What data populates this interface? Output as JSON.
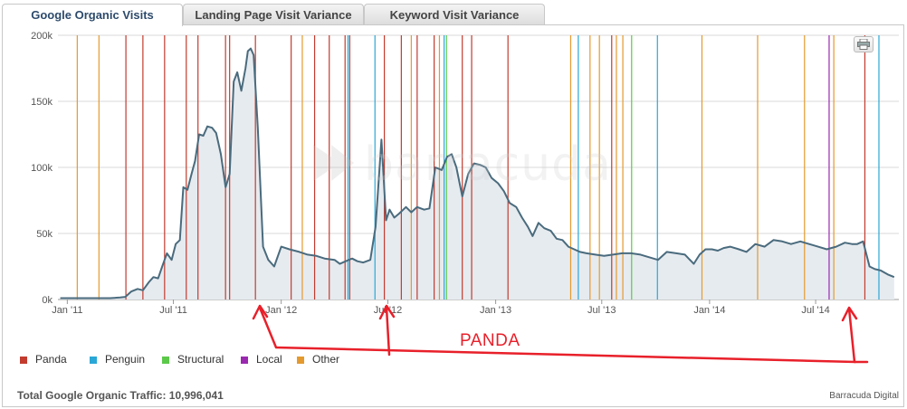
{
  "tabs": [
    {
      "label": "Google Organic Visits",
      "active": true
    },
    {
      "label": "Landing Page Visit Variance",
      "active": false
    },
    {
      "label": "Keyword Visit Variance",
      "active": false
    }
  ],
  "watermark": {
    "text": "barracuda"
  },
  "annotation": {
    "text": "PANDA",
    "color": "#e8202a"
  },
  "legend": [
    {
      "label": "Panda",
      "color": "#c23b2e"
    },
    {
      "label": "Penguin",
      "color": "#2aa7d6"
    },
    {
      "label": "Structural",
      "color": "#5cc84a"
    },
    {
      "label": "Local",
      "color": "#9b29b0"
    },
    {
      "label": "Other",
      "color": "#e49a2e"
    }
  ],
  "footer": {
    "total_label": "Total Google Organic Traffic: 10,996,041",
    "credit": "Barracuda Digital"
  },
  "print_button": {
    "icon": "printer-icon"
  },
  "chart_data": {
    "type": "area",
    "title": "",
    "xlabel": "",
    "ylabel": "",
    "ylim": [
      0,
      200000
    ],
    "yticks": [
      {
        "value": 0,
        "label": "0k"
      },
      {
        "value": 50000,
        "label": "50k"
      },
      {
        "value": 100000,
        "label": "100k"
      },
      {
        "value": 150000,
        "label": "150k"
      },
      {
        "value": 200000,
        "label": "200k"
      }
    ],
    "xlim": [
      "2010-12-16",
      "2014-11-20"
    ],
    "xticks": [
      {
        "date": "2011-01-01",
        "label": "Jan '11"
      },
      {
        "date": "2011-07-01",
        "label": "Jul '11"
      },
      {
        "date": "2012-01-01",
        "label": "Jan '12"
      },
      {
        "date": "2012-07-01",
        "label": "Jul '12"
      },
      {
        "date": "2013-01-01",
        "label": "Jan '13"
      },
      {
        "date": "2013-07-01",
        "label": "Jul '13"
      },
      {
        "date": "2014-01-01",
        "label": "Jan '14"
      },
      {
        "date": "2014-07-01",
        "label": "Jul '14"
      }
    ],
    "grid": true,
    "line_color": "#4a6b7d",
    "fill_color": "#e6ebf0",
    "series": [
      {
        "x": [
          "2010-12-20",
          "2011-01-15",
          "2011-02-15",
          "2011-03-15",
          "2011-04-01",
          "2011-04-10",
          "2011-04-20",
          "2011-05-01",
          "2011-05-10",
          "2011-05-20",
          "2011-05-28",
          "2011-06-05",
          "2011-06-12",
          "2011-06-20",
          "2011-06-28",
          "2011-07-05",
          "2011-07-12",
          "2011-07-18",
          "2011-07-25",
          "2011-08-01",
          "2011-08-07",
          "2011-08-14",
          "2011-08-21",
          "2011-08-28",
          "2011-09-05",
          "2011-09-12",
          "2011-09-20",
          "2011-09-28",
          "2011-10-05",
          "2011-10-12",
          "2011-10-18",
          "2011-10-25",
          "2011-11-01",
          "2011-11-05",
          "2011-11-10",
          "2011-11-15",
          "2011-11-22",
          "2011-12-01",
          "2011-12-10",
          "2011-12-20",
          "2012-01-01",
          "2012-01-15",
          "2012-02-01",
          "2012-02-15",
          "2012-03-01",
          "2012-03-15",
          "2012-04-01",
          "2012-04-10",
          "2012-04-20",
          "2012-05-01",
          "2012-05-10",
          "2012-05-20",
          "2012-06-01",
          "2012-06-10",
          "2012-06-20",
          "2012-06-28",
          "2012-07-04",
          "2012-07-12",
          "2012-07-20",
          "2012-08-01",
          "2012-08-10",
          "2012-08-20",
          "2012-09-01",
          "2012-09-10",
          "2012-09-20",
          "2012-10-01",
          "2012-10-10",
          "2012-10-18",
          "2012-10-26",
          "2012-11-05",
          "2012-11-15",
          "2012-11-25",
          "2012-12-05",
          "2012-12-15",
          "2012-12-25",
          "2013-01-05",
          "2013-01-15",
          "2013-01-25",
          "2013-02-05",
          "2013-02-15",
          "2013-02-25",
          "2013-03-05",
          "2013-03-15",
          "2013-03-25",
          "2013-04-05",
          "2013-04-15",
          "2013-04-25",
          "2013-05-05",
          "2013-05-15",
          "2013-05-25",
          "2013-06-05",
          "2013-06-20",
          "2013-07-05",
          "2013-07-20",
          "2013-08-05",
          "2013-08-20",
          "2013-09-05",
          "2013-09-20",
          "2013-10-05",
          "2013-10-20",
          "2013-11-05",
          "2013-11-20",
          "2013-12-05",
          "2013-12-15",
          "2013-12-25",
          "2014-01-05",
          "2014-01-15",
          "2014-01-25",
          "2014-02-05",
          "2014-02-20",
          "2014-03-05",
          "2014-03-20",
          "2014-04-05",
          "2014-04-20",
          "2014-05-05",
          "2014-05-20",
          "2014-06-05",
          "2014-06-20",
          "2014-07-05",
          "2014-07-20",
          "2014-08-05",
          "2014-08-20",
          "2014-09-01",
          "2014-09-10",
          "2014-09-20",
          "2014-10-01",
          "2014-10-10",
          "2014-10-20",
          "2014-11-01",
          "2014-11-12"
        ],
        "values": [
          1000,
          1000,
          1000,
          1000,
          1500,
          2000,
          6000,
          8000,
          7000,
          13000,
          17000,
          16000,
          25000,
          35000,
          30000,
          42000,
          45000,
          85000,
          83000,
          95000,
          105000,
          125000,
          124000,
          131000,
          130000,
          126000,
          110000,
          85000,
          95000,
          165000,
          172000,
          158000,
          175000,
          188000,
          190000,
          185000,
          130000,
          40000,
          30000,
          25000,
          40000,
          38000,
          36000,
          34000,
          33000,
          31000,
          30000,
          27000,
          29000,
          31000,
          29000,
          28000,
          30000,
          55000,
          121000,
          60000,
          68000,
          62000,
          65000,
          70000,
          66000,
          70000,
          68000,
          69000,
          100000,
          98000,
          108000,
          110000,
          100000,
          78000,
          95000,
          103000,
          102000,
          100000,
          92000,
          88000,
          82000,
          73000,
          70000,
          62000,
          55000,
          48000,
          58000,
          54000,
          52000,
          46000,
          45000,
          40000,
          38000,
          36000,
          35000,
          34000,
          33000,
          34000,
          35000,
          35000,
          34000,
          32000,
          30000,
          36000,
          35000,
          34000,
          27000,
          34000,
          38000,
          38000,
          37000,
          39000,
          40000,
          38000,
          36000,
          42000,
          40000,
          45000,
          44000,
          42000,
          44000,
          42000,
          40000,
          38000,
          40000,
          43000,
          42000,
          42000,
          44000,
          25000,
          23000,
          22000,
          19000,
          17000
        ]
      }
    ],
    "events": [
      {
        "date": "2011-01-18",
        "type": "Other"
      },
      {
        "date": "2011-02-24",
        "type": "Other"
      },
      {
        "date": "2011-04-11",
        "type": "Panda"
      },
      {
        "date": "2011-05-10",
        "type": "Panda"
      },
      {
        "date": "2011-06-16",
        "type": "Panda"
      },
      {
        "date": "2011-07-23",
        "type": "Panda"
      },
      {
        "date": "2011-08-12",
        "type": "Panda"
      },
      {
        "date": "2011-09-28",
        "type": "Panda"
      },
      {
        "date": "2011-10-05",
        "type": "Panda"
      },
      {
        "date": "2011-11-18",
        "type": "Panda"
      },
      {
        "date": "2012-01-18",
        "type": "Panda"
      },
      {
        "date": "2012-02-06",
        "type": "Other"
      },
      {
        "date": "2012-02-27",
        "type": "Panda"
      },
      {
        "date": "2012-03-23",
        "type": "Panda"
      },
      {
        "date": "2012-04-19",
        "type": "Panda"
      },
      {
        "date": "2012-04-24",
        "type": "Penguin"
      },
      {
        "date": "2012-04-27",
        "type": "Panda"
      },
      {
        "date": "2012-06-09",
        "type": "Penguin"
      },
      {
        "date": "2012-06-25",
        "type": "Panda"
      },
      {
        "date": "2012-07-24",
        "type": "Panda"
      },
      {
        "date": "2012-08-10",
        "type": "Other"
      },
      {
        "date": "2012-08-20",
        "type": "Panda"
      },
      {
        "date": "2012-09-18",
        "type": "Panda"
      },
      {
        "date": "2012-09-27",
        "type": "Other"
      },
      {
        "date": "2012-10-05",
        "type": "Penguin"
      },
      {
        "date": "2012-10-09",
        "type": "Structural"
      },
      {
        "date": "2012-11-05",
        "type": "Panda"
      },
      {
        "date": "2012-11-21",
        "type": "Panda"
      },
      {
        "date": "2013-01-22",
        "type": "Panda"
      },
      {
        "date": "2013-05-09",
        "type": "Other"
      },
      {
        "date": "2013-05-22",
        "type": "Penguin"
      },
      {
        "date": "2013-06-11",
        "type": "Other"
      },
      {
        "date": "2013-06-27",
        "type": "Other"
      },
      {
        "date": "2013-07-18",
        "type": "Panda"
      },
      {
        "date": "2013-07-26",
        "type": "Other"
      },
      {
        "date": "2013-08-06",
        "type": "Other"
      },
      {
        "date": "2013-08-21",
        "type": "Structural"
      },
      {
        "date": "2013-10-04",
        "type": "Penguin"
      },
      {
        "date": "2013-12-19",
        "type": "Other"
      },
      {
        "date": "2014-03-24",
        "type": "Other"
      },
      {
        "date": "2014-06-12",
        "type": "Other"
      },
      {
        "date": "2014-07-24",
        "type": "Local"
      },
      {
        "date": "2014-08-01",
        "type": "Other"
      },
      {
        "date": "2014-09-23",
        "type": "Panda"
      },
      {
        "date": "2014-10-17",
        "type": "Penguin"
      }
    ]
  }
}
